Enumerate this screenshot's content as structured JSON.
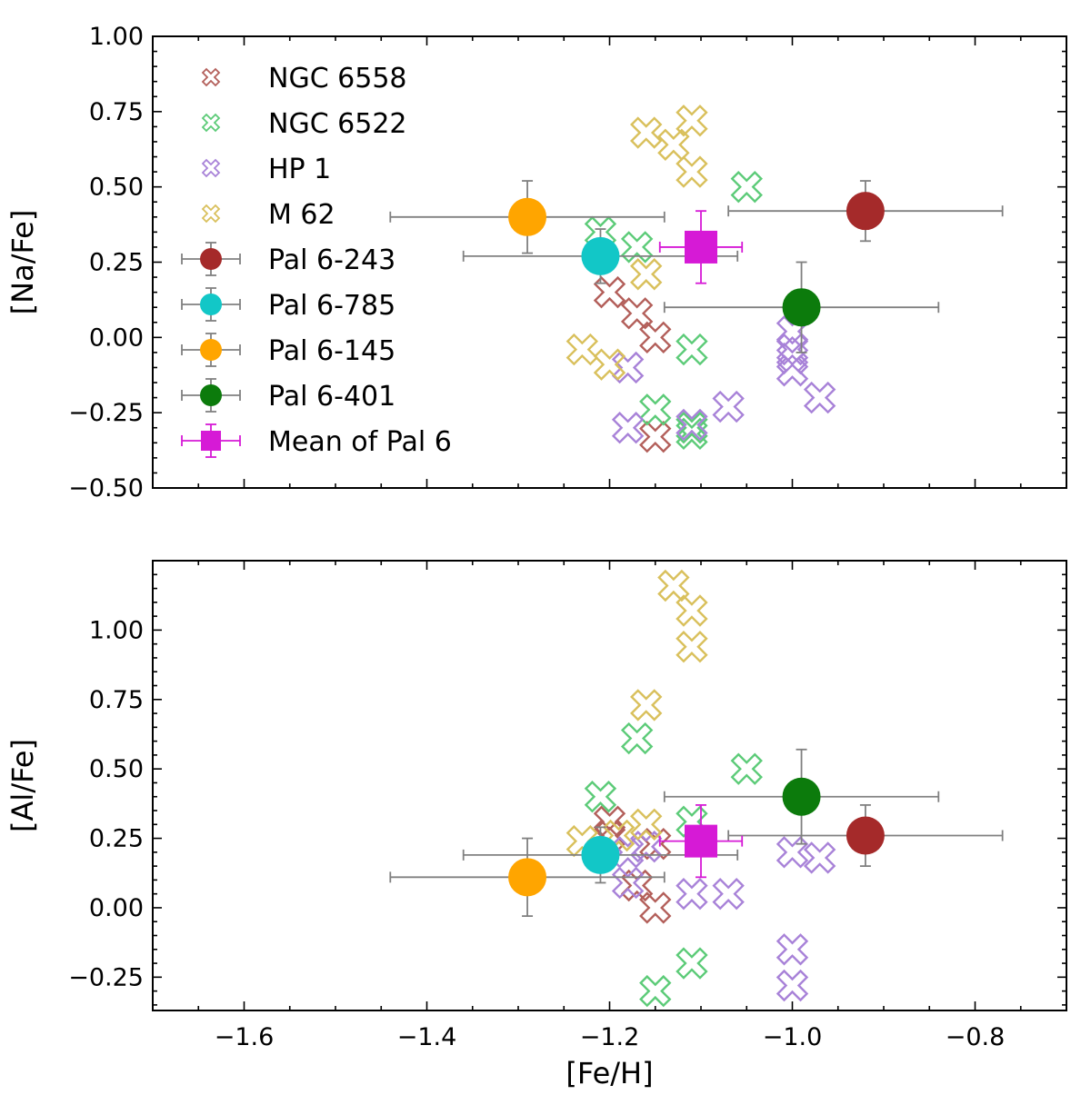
{
  "chart_data": [
    {
      "type": "scatter",
      "panel": "top",
      "xlabel": "",
      "ylabel": "[Na/Fe]",
      "xlim": [
        -1.7,
        -0.7
      ],
      "ylim": [
        -0.5,
        1.0
      ],
      "x_ticks": [
        -1.6,
        -1.4,
        -1.2,
        -1.0,
        -0.8
      ],
      "x_tick_labels": [
        "−1.6",
        "−1.4",
        "−1.2",
        "−1.0",
        "−0.8"
      ],
      "y_ticks": [
        1.0,
        0.75,
        0.5,
        0.25,
        0.0,
        -0.25,
        -0.5
      ],
      "y_tick_labels": [
        "1.00",
        "0.75",
        "0.50",
        "0.25",
        "0.00",
        "−0.25",
        "−0.50"
      ],
      "legend": {
        "position": "top-left",
        "entries": [
          {
            "label": "NGC 6558",
            "key": "ngc6558"
          },
          {
            "label": "NGC 6522",
            "key": "ngc6522"
          },
          {
            "label": "HP 1",
            "key": "hp1"
          },
          {
            "label": "M 62",
            "key": "m62"
          },
          {
            "label": "Pal 6-243",
            "key": "pal243"
          },
          {
            "label": "Pal 6-785",
            "key": "pal785"
          },
          {
            "label": "Pal 6-145",
            "key": "pal145"
          },
          {
            "label": "Pal 6-401",
            "key": "pal401"
          },
          {
            "label": "Mean of Pal 6",
            "key": "mean"
          }
        ]
      },
      "comparison_series": [
        {
          "key": "ngc6558",
          "name": "NGC 6558",
          "points": [
            [
              -1.2,
              0.15
            ],
            [
              -1.17,
              0.08
            ],
            [
              -1.15,
              0.0
            ],
            [
              -1.15,
              -0.33
            ]
          ]
        },
        {
          "key": "ngc6522",
          "name": "NGC 6522",
          "points": [
            [
              -1.21,
              0.35
            ],
            [
              -1.17,
              0.3
            ],
            [
              -1.05,
              0.5
            ],
            [
              -1.11,
              -0.04
            ],
            [
              -1.15,
              -0.24
            ],
            [
              -1.11,
              -0.32
            ],
            [
              -1.11,
              -0.3
            ]
          ]
        },
        {
          "key": "hp1",
          "name": "HP 1",
          "points": [
            [
              -1.18,
              -0.1
            ],
            [
              -1.18,
              -0.3
            ],
            [
              -1.11,
              -0.29
            ],
            [
              -1.07,
              -0.23
            ],
            [
              -1.0,
              0.02
            ],
            [
              -1.0,
              -0.04
            ],
            [
              -1.0,
              -0.11
            ],
            [
              -0.97,
              -0.2
            ],
            [
              -1.0,
              -0.07
            ]
          ]
        },
        {
          "key": "m62",
          "name": "M 62",
          "points": [
            [
              -1.16,
              0.68
            ],
            [
              -1.13,
              0.64
            ],
            [
              -1.11,
              0.72
            ],
            [
              -1.11,
              0.55
            ],
            [
              -1.16,
              0.21
            ],
            [
              -1.23,
              -0.04
            ],
            [
              -1.2,
              -0.09
            ]
          ]
        }
      ],
      "pal6_series": [
        {
          "key": "pal243",
          "name": "Pal 6-243",
          "x": -0.92,
          "y": 0.42,
          "x_err": [
            0.15,
            0.15
          ],
          "y_err": [
            0.1,
            0.1
          ]
        },
        {
          "key": "pal785",
          "name": "Pal 6-785",
          "x": -1.21,
          "y": 0.27,
          "x_err": [
            0.15,
            0.15
          ],
          "y_err": [
            0.09,
            0.09
          ]
        },
        {
          "key": "pal145",
          "name": "Pal 6-145",
          "x": -1.29,
          "y": 0.4,
          "x_err": [
            0.15,
            0.15
          ],
          "y_err": [
            0.12,
            0.12
          ]
        },
        {
          "key": "pal401",
          "name": "Pal 6-401",
          "x": -0.99,
          "y": 0.1,
          "x_err": [
            0.15,
            0.15
          ],
          "y_err": [
            0.15,
            0.15
          ]
        },
        {
          "key": "mean",
          "name": "Mean of Pal 6",
          "x": -1.1,
          "y": 0.3,
          "x_err": [
            0.045,
            0.045
          ],
          "y_err": [
            0.12,
            0.12
          ]
        }
      ]
    },
    {
      "type": "scatter",
      "panel": "bottom",
      "xlabel": "[Fe/H]",
      "ylabel": "[Al/Fe]",
      "xlim": [
        -1.7,
        -0.7
      ],
      "ylim": [
        -0.37,
        1.25
      ],
      "x_ticks": [
        -1.6,
        -1.4,
        -1.2,
        -1.0,
        -0.8
      ],
      "x_tick_labels": [
        "−1.6",
        "−1.4",
        "−1.2",
        "−1.0",
        "−0.8"
      ],
      "y_ticks": [
        1.0,
        0.75,
        0.5,
        0.25,
        0.0,
        -0.25
      ],
      "y_tick_labels": [
        "1.00",
        "0.75",
        "0.50",
        "0.25",
        "0.00",
        "−0.25"
      ],
      "comparison_series": [
        {
          "key": "ngc6558",
          "name": "NGC 6558",
          "points": [
            [
              -1.2,
              0.31
            ],
            [
              -1.2,
              0.26
            ],
            [
              -1.15,
              0.23
            ],
            [
              -1.17,
              0.08
            ],
            [
              -1.15,
              0.0
            ]
          ]
        },
        {
          "key": "ngc6522",
          "name": "NGC 6522",
          "points": [
            [
              -1.21,
              0.4
            ],
            [
              -1.17,
              0.61
            ],
            [
              -1.05,
              0.5
            ],
            [
              -1.11,
              0.31
            ],
            [
              -1.11,
              -0.2
            ],
            [
              -1.15,
              -0.3
            ]
          ]
        },
        {
          "key": "hp1",
          "name": "HP 1",
          "points": [
            [
              -1.18,
              0.2
            ],
            [
              -1.18,
              0.09
            ],
            [
              -1.16,
              0.22
            ],
            [
              -1.11,
              0.05
            ],
            [
              -1.07,
              0.05
            ],
            [
              -1.0,
              0.2
            ],
            [
              -0.97,
              0.18
            ],
            [
              -1.0,
              -0.15
            ],
            [
              -1.0,
              -0.28
            ]
          ]
        },
        {
          "key": "m62",
          "name": "M 62",
          "points": [
            [
              -1.13,
              1.16
            ],
            [
              -1.11,
              1.07
            ],
            [
              -1.11,
              0.94
            ],
            [
              -1.16,
              0.73
            ],
            [
              -1.16,
              0.3
            ],
            [
              -1.23,
              0.24
            ],
            [
              -1.19,
              0.26
            ]
          ]
        }
      ],
      "pal6_series": [
        {
          "key": "pal243",
          "name": "Pal 6-243",
          "x": -0.92,
          "y": 0.26,
          "x_err": [
            0.15,
            0.15
          ],
          "y_err": [
            0.11,
            0.11
          ]
        },
        {
          "key": "pal785",
          "name": "Pal 6-785",
          "x": -1.21,
          "y": 0.19,
          "x_err": [
            0.15,
            0.15
          ],
          "y_err": [
            0.1,
            0.1
          ]
        },
        {
          "key": "pal145",
          "name": "Pal 6-145",
          "x": -1.29,
          "y": 0.11,
          "x_err": [
            0.15,
            0.15
          ],
          "y_err": [
            0.14,
            0.14
          ]
        },
        {
          "key": "pal401",
          "name": "Pal 6-401",
          "x": -0.99,
          "y": 0.4,
          "x_err": [
            0.15,
            0.15
          ],
          "y_err": [
            0.17,
            0.17
          ]
        },
        {
          "key": "mean",
          "name": "Mean of Pal 6",
          "x": -1.1,
          "y": 0.24,
          "x_err": [
            0.045,
            0.045
          ],
          "y_err": [
            0.13,
            0.13
          ]
        }
      ]
    }
  ],
  "styles": {
    "ngc6558": {
      "color": "#b35f5a",
      "marker": "x-open"
    },
    "ngc6522": {
      "color": "#5ccb78",
      "marker": "x-open"
    },
    "hp1": {
      "color": "#a882d8",
      "marker": "x-open"
    },
    "m62": {
      "color": "#d9c05c",
      "marker": "x-open"
    },
    "pal243": {
      "color": "#a52a2a",
      "marker": "circle"
    },
    "pal785": {
      "color": "#12c7c7",
      "marker": "circle"
    },
    "pal145": {
      "color": "#ffa500",
      "marker": "circle"
    },
    "pal401": {
      "color": "#0c7b0c",
      "marker": "circle"
    },
    "mean": {
      "color": "#d61ad6",
      "marker": "square"
    },
    "errorbar_gray": "#808080"
  }
}
